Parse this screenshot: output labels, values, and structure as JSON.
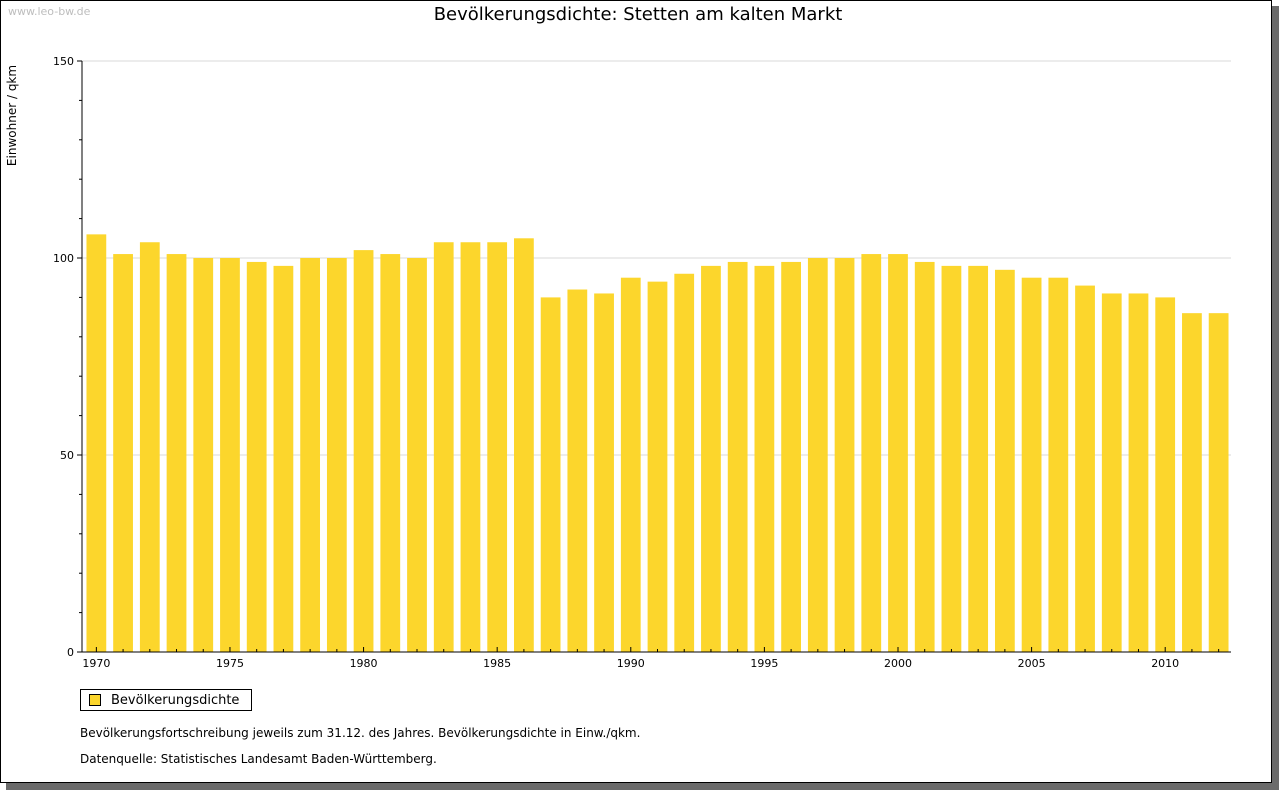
{
  "watermark": "www.leo-bw.de",
  "colors": {
    "bar": "#fcd62c",
    "grid": "#d9d9d9",
    "axis": "#000000"
  },
  "chart_data": {
    "type": "bar",
    "title": "Bevölkerungsdichte: Stetten am kalten Markt",
    "ylabel": "Einwohner / qkm",
    "xlabel": "",
    "ylim": [
      0,
      150
    ],
    "yticks": [
      0,
      50,
      100,
      150
    ],
    "xtick_labels": [
      "1970",
      "1975",
      "1980",
      "1985",
      "1990",
      "1995",
      "2000",
      "2005",
      "2010"
    ],
    "categories": [
      1970,
      1971,
      1972,
      1973,
      1974,
      1975,
      1976,
      1977,
      1978,
      1979,
      1980,
      1981,
      1982,
      1983,
      1984,
      1985,
      1986,
      1987,
      1988,
      1989,
      1990,
      1991,
      1992,
      1993,
      1994,
      1995,
      1996,
      1997,
      1998,
      1999,
      2000,
      2001,
      2002,
      2003,
      2004,
      2005,
      2006,
      2007,
      2008,
      2009,
      2010,
      2011,
      2012
    ],
    "series": [
      {
        "name": "Bevölkerungsdichte",
        "values": [
          106,
          101,
          104,
          101,
          100,
          100,
          99,
          98,
          100,
          100,
          102,
          101,
          100,
          104,
          104,
          104,
          105,
          90,
          92,
          91,
          95,
          94,
          96,
          98,
          99,
          98,
          99,
          100,
          100,
          101,
          101,
          99,
          98,
          98,
          97,
          95,
          95,
          93,
          91,
          91,
          90,
          86,
          86
        ]
      }
    ],
    "grid": true,
    "legend": "bottom-left"
  },
  "notes": {
    "line1": "Bevölkerungsfortschreibung jeweils zum 31.12. des Jahres. Bevölkerungsdichte in Einw./qkm.",
    "line2": "Datenquelle: Statistisches Landesamt Baden-Württemberg."
  }
}
